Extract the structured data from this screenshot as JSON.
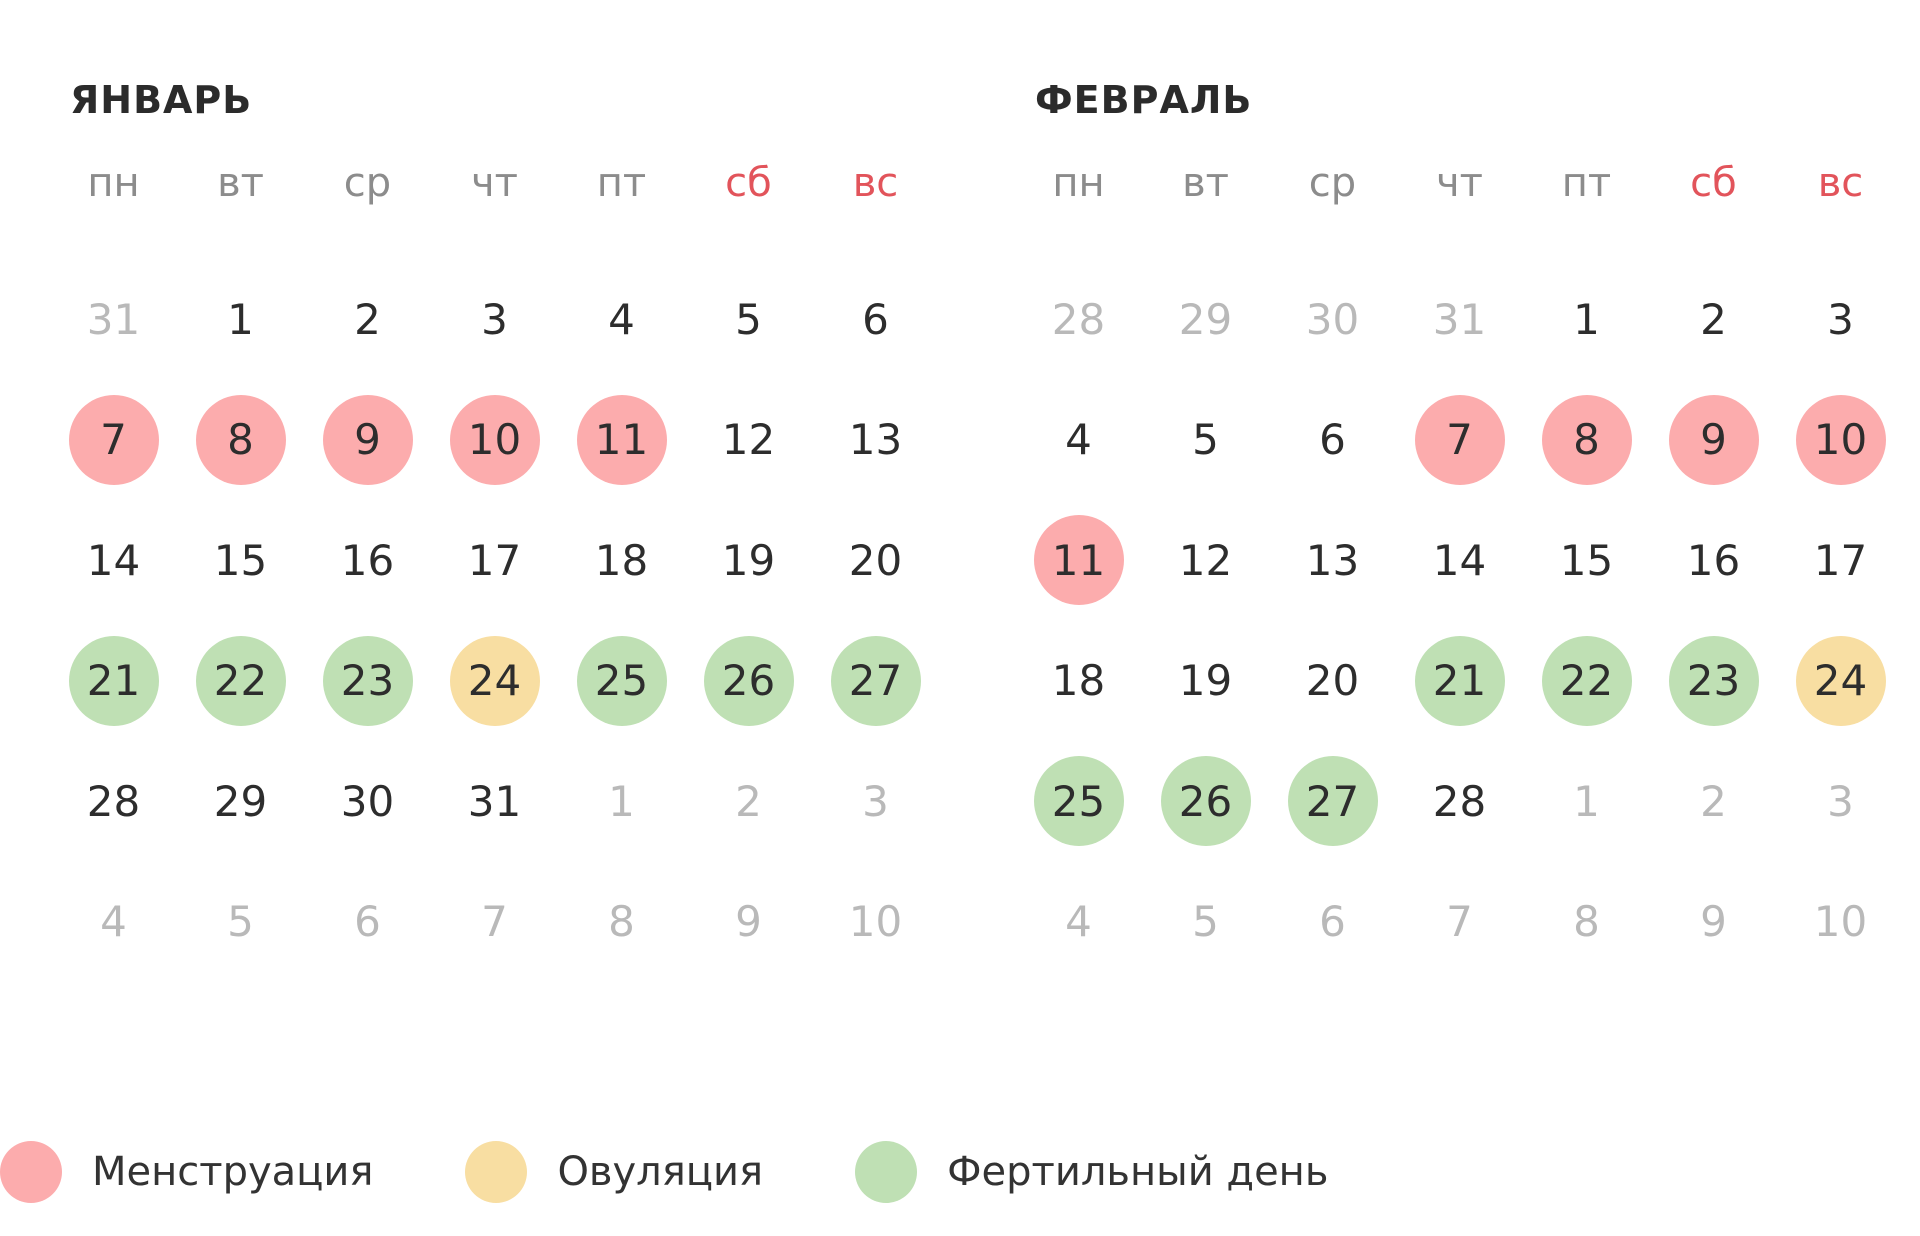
{
  "colors": {
    "menstruation": "#fcacad",
    "ovulation": "#f8dea2",
    "fertile": "#bfe0b4",
    "weekend_text": "#e2545b",
    "muted_text": "#b9b9b9"
  },
  "weekdays": [
    {
      "label": "пн",
      "weekend": false
    },
    {
      "label": "вт",
      "weekend": false
    },
    {
      "label": "ср",
      "weekend": false
    },
    {
      "label": "чт",
      "weekend": false
    },
    {
      "label": "пт",
      "weekend": false
    },
    {
      "label": "сб",
      "weekend": true
    },
    {
      "label": "вс",
      "weekend": true
    }
  ],
  "months": [
    {
      "title": "ЯНВАРЬ",
      "days": [
        {
          "n": "31",
          "muted": true
        },
        {
          "n": "1"
        },
        {
          "n": "2"
        },
        {
          "n": "3"
        },
        {
          "n": "4"
        },
        {
          "n": "5"
        },
        {
          "n": "6"
        },
        {
          "n": "7",
          "type": "menstruation"
        },
        {
          "n": "8",
          "type": "menstruation"
        },
        {
          "n": "9",
          "type": "menstruation"
        },
        {
          "n": "10",
          "type": "menstruation"
        },
        {
          "n": "11",
          "type": "menstruation"
        },
        {
          "n": "12"
        },
        {
          "n": "13"
        },
        {
          "n": "14"
        },
        {
          "n": "15"
        },
        {
          "n": "16"
        },
        {
          "n": "17"
        },
        {
          "n": "18"
        },
        {
          "n": "19"
        },
        {
          "n": "20"
        },
        {
          "n": "21",
          "type": "fertile"
        },
        {
          "n": "22",
          "type": "fertile"
        },
        {
          "n": "23",
          "type": "fertile"
        },
        {
          "n": "24",
          "type": "ovulation"
        },
        {
          "n": "25",
          "type": "fertile"
        },
        {
          "n": "26",
          "type": "fertile"
        },
        {
          "n": "27",
          "type": "fertile"
        },
        {
          "n": "28"
        },
        {
          "n": "29"
        },
        {
          "n": "30"
        },
        {
          "n": "31"
        },
        {
          "n": "1",
          "muted": true
        },
        {
          "n": "2",
          "muted": true
        },
        {
          "n": "3",
          "muted": true
        },
        {
          "n": "4",
          "muted": true
        },
        {
          "n": "5",
          "muted": true
        },
        {
          "n": "6",
          "muted": true
        },
        {
          "n": "7",
          "muted": true
        },
        {
          "n": "8",
          "muted": true
        },
        {
          "n": "9",
          "muted": true
        },
        {
          "n": "10",
          "muted": true
        }
      ]
    },
    {
      "title": "ФЕВРАЛЬ",
      "days": [
        {
          "n": "28",
          "muted": true
        },
        {
          "n": "29",
          "muted": true
        },
        {
          "n": "30",
          "muted": true
        },
        {
          "n": "31",
          "muted": true
        },
        {
          "n": "1"
        },
        {
          "n": "2"
        },
        {
          "n": "3"
        },
        {
          "n": "4"
        },
        {
          "n": "5"
        },
        {
          "n": "6"
        },
        {
          "n": "7",
          "type": "menstruation"
        },
        {
          "n": "8",
          "type": "menstruation"
        },
        {
          "n": "9",
          "type": "menstruation"
        },
        {
          "n": "10",
          "type": "menstruation"
        },
        {
          "n": "11",
          "type": "menstruation"
        },
        {
          "n": "12"
        },
        {
          "n": "13"
        },
        {
          "n": "14"
        },
        {
          "n": "15"
        },
        {
          "n": "16"
        },
        {
          "n": "17"
        },
        {
          "n": "18"
        },
        {
          "n": "19"
        },
        {
          "n": "20"
        },
        {
          "n": "21",
          "type": "fertile"
        },
        {
          "n": "22",
          "type": "fertile"
        },
        {
          "n": "23",
          "type": "fertile"
        },
        {
          "n": "24",
          "type": "ovulation"
        },
        {
          "n": "25",
          "type": "fertile"
        },
        {
          "n": "26",
          "type": "fertile"
        },
        {
          "n": "27",
          "type": "fertile"
        },
        {
          "n": "28"
        },
        {
          "n": "1",
          "muted": true
        },
        {
          "n": "2",
          "muted": true
        },
        {
          "n": "3",
          "muted": true
        },
        {
          "n": "4",
          "muted": true
        },
        {
          "n": "5",
          "muted": true
        },
        {
          "n": "6",
          "muted": true
        },
        {
          "n": "7",
          "muted": true
        },
        {
          "n": "8",
          "muted": true
        },
        {
          "n": "9",
          "muted": true
        },
        {
          "n": "10",
          "muted": true
        }
      ]
    }
  ],
  "legend": [
    {
      "type": "menstruation",
      "label": "Менструация"
    },
    {
      "type": "ovulation",
      "label": "Овуляция"
    },
    {
      "type": "fertile",
      "label": "Фертильный день"
    }
  ]
}
